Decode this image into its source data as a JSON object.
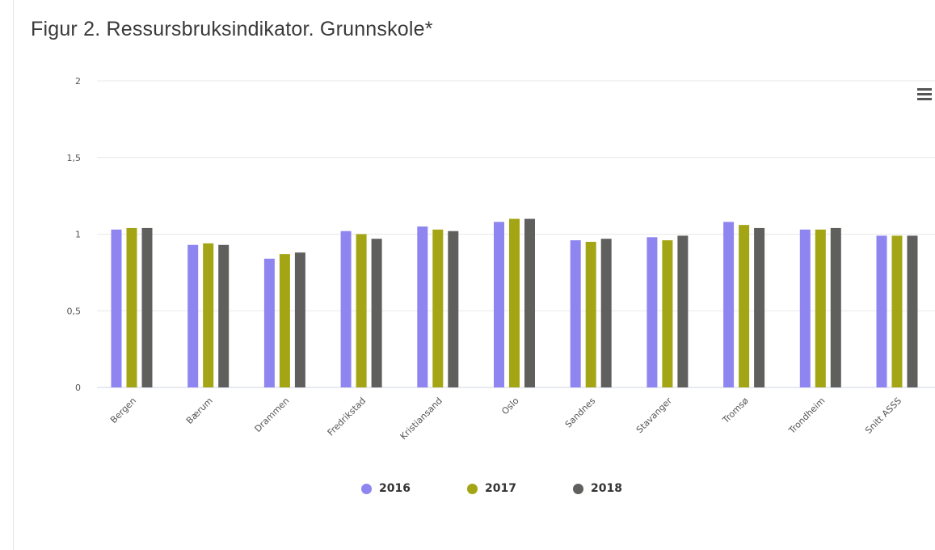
{
  "title": "Figur 2. Ressursbruksindikator. Grunnskole*",
  "menu_icon": "hamburger-menu-icon",
  "chart_data": {
    "type": "bar",
    "title": "Figur 2. Ressursbruksindikator. Grunnskole*",
    "xlabel": "",
    "ylabel": "",
    "ylim": [
      0,
      2
    ],
    "y_ticks": [
      "0",
      "0,5",
      "1",
      "1,5",
      "2"
    ],
    "y_tick_values": [
      0,
      0.5,
      1,
      1.5,
      2
    ],
    "grid": true,
    "legend_position": "bottom-center",
    "categories": [
      "Bergen",
      "Bærum",
      "Drammen",
      "Fredrikstad",
      "Kristiansand",
      "Oslo",
      "Sandnes",
      "Stavanger",
      "Tromsø",
      "Trondheim",
      "Snitt ASSS"
    ],
    "series": [
      {
        "name": "2016",
        "color": "#8f85f0",
        "values": [
          1.03,
          0.93,
          0.84,
          1.02,
          1.05,
          1.08,
          0.96,
          0.98,
          1.08,
          1.03,
          0.99
        ]
      },
      {
        "name": "2017",
        "color": "#a4a514",
        "values": [
          1.04,
          0.94,
          0.87,
          1.0,
          1.03,
          1.1,
          0.95,
          0.96,
          1.06,
          1.03,
          0.99
        ]
      },
      {
        "name": "2018",
        "color": "#5f605e",
        "values": [
          1.04,
          0.93,
          0.88,
          0.97,
          1.02,
          1.1,
          0.97,
          0.99,
          1.04,
          1.04,
          0.99
        ]
      }
    ]
  }
}
